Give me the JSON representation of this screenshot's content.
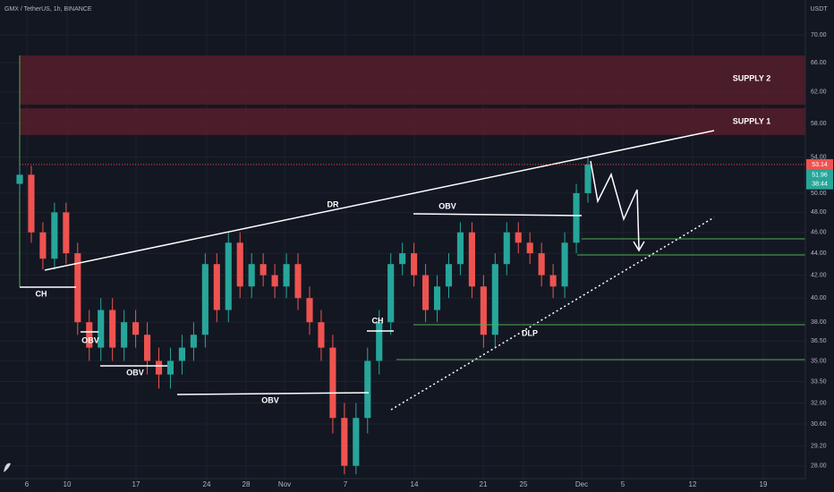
{
  "chart_data": {
    "type": "candlestick",
    "title": "GMX / TetherUS, 1h, BINANCE",
    "currency": "USDT",
    "log_scale": true,
    "grid": true,
    "up_color": "#26a69a",
    "down_color": "#ef5350",
    "ylim": [
      27.25,
      75.4
    ],
    "yticks": [
      {
        "value": 70,
        "label": "70.00"
      },
      {
        "value": 66,
        "label": "66.00"
      },
      {
        "value": 62,
        "label": "62.00"
      },
      {
        "value": 58,
        "label": "58.00"
      },
      {
        "value": 54,
        "label": "54.00"
      },
      {
        "value": 50,
        "label": "50.00"
      },
      {
        "value": 48,
        "label": "48.00"
      },
      {
        "value": 46,
        "label": "46.00"
      },
      {
        "value": 44,
        "label": "44.00"
      },
      {
        "value": 42,
        "label": "42.00"
      },
      {
        "value": 40,
        "label": "40.00"
      },
      {
        "value": 38,
        "label": "38.00"
      },
      {
        "value": 36.5,
        "label": "36.50"
      },
      {
        "value": 35,
        "label": "35.00"
      },
      {
        "value": 33.5,
        "label": "33.50"
      },
      {
        "value": 32,
        "label": "32.00"
      },
      {
        "value": 30.6,
        "label": "30.60"
      },
      {
        "value": 29.2,
        "label": "29.20"
      },
      {
        "value": 28,
        "label": "28.00"
      }
    ],
    "x_labels": [
      "6",
      "10",
      "17",
      "24",
      "28",
      "Nov",
      "7",
      "14",
      "21",
      "25",
      "Dec",
      "5",
      "12",
      "19"
    ],
    "open": [
      51,
      52,
      46,
      43.5,
      48,
      44,
      38,
      36,
      39,
      36,
      38,
      37,
      35,
      34,
      35,
      36,
      37,
      43,
      39,
      45,
      41,
      43,
      42,
      41,
      43,
      40,
      38,
      36,
      31,
      28,
      31,
      35,
      38,
      43,
      44,
      42,
      39,
      41,
      43,
      46,
      41,
      37,
      43,
      46,
      45,
      44,
      42,
      41,
      45,
      50
    ],
    "high": [
      53,
      53,
      47,
      49,
      49,
      45,
      39,
      40,
      40,
      39,
      39,
      38,
      36,
      36,
      37,
      38,
      44,
      44,
      46,
      46,
      44,
      44,
      43,
      44,
      44,
      41,
      39,
      37,
      32,
      32,
      36,
      39,
      44,
      45,
      45,
      43,
      42,
      44,
      47,
      47,
      42,
      44,
      47,
      47,
      46,
      45,
      43,
      46,
      51,
      54
    ],
    "low": [
      50,
      45,
      42.5,
      42.5,
      43,
      37,
      35,
      35,
      35,
      35,
      36,
      34,
      33,
      33,
      34,
      35,
      36,
      38,
      38,
      40,
      40,
      41,
      40,
      40,
      39,
      37,
      35,
      30,
      27.5,
      27.5,
      30,
      34,
      37,
      42,
      41,
      38,
      38,
      40,
      42,
      40,
      36,
      36,
      42,
      44,
      43,
      41,
      40,
      40,
      44,
      49
    ],
    "close": [
      52,
      46,
      43.5,
      48,
      44,
      38,
      36,
      39,
      36,
      38,
      37,
      35,
      34,
      35,
      36,
      37,
      43,
      39,
      45,
      41,
      43,
      42,
      41,
      43,
      40,
      38,
      36,
      31,
      28,
      31,
      35,
      38,
      43,
      44,
      42,
      39,
      41,
      43,
      46,
      41,
      37,
      43,
      46,
      45,
      44,
      42,
      41,
      45,
      50,
      53.14
    ],
    "last_price": 53.14,
    "mark_price": 51.96,
    "countdown": "38:44",
    "annotations": [
      "SUPPLY 2",
      "SUPPLY 1",
      "DR",
      "OBV",
      "CH",
      "OBV",
      "OBV",
      "OBV",
      "CH",
      "DLP"
    ]
  }
}
